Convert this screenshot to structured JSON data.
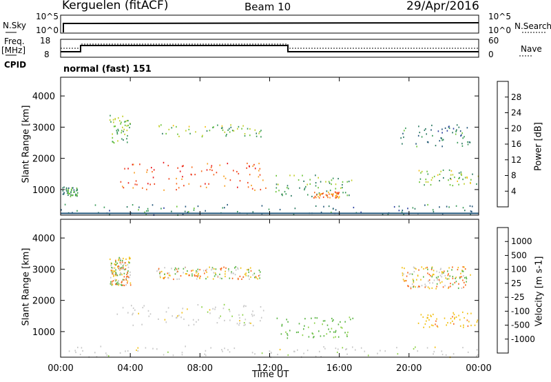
{
  "header": {
    "station": "Kerguelen (fitACF)",
    "beam": "Beam 10",
    "date": "29/Apr/2016"
  },
  "status_panels": {
    "nsky_label": "N.Sky",
    "nsky_ticks": [
      "10^5",
      "10^0"
    ],
    "nsearch_label": "N.Search",
    "nsearch_ticks": [
      "10^5",
      "10^0"
    ],
    "freq_label": "Freq.",
    "freq_unit": "[MHz]",
    "freq_ticks": [
      "18",
      "8"
    ],
    "nave_label": "Nave",
    "nave_ticks": [
      "60",
      "0"
    ],
    "cpid_label": "CPID",
    "cpid_value": "normal (fast) 151"
  },
  "axes": {
    "ylabel": "Slant Range [km]",
    "xlabel": "Time UT",
    "x_ticks": [
      "00:00",
      "04:00",
      "08:00",
      "12:00",
      "16:00",
      "20:00",
      "00:00"
    ],
    "y_ticks": [
      "1000",
      "2000",
      "3000",
      "4000"
    ]
  },
  "power_colorbar": {
    "label": "Power [dB]",
    "ticks": [
      "28",
      "24",
      "20",
      "16",
      "12",
      "8",
      "4"
    ],
    "colors": [
      "#e8171b",
      "#f0421c",
      "#f86d20",
      "#f7a024",
      "#f2c21a",
      "#c2cf2a",
      "#6cc43a",
      "#3a9a5a",
      "#2d7a63",
      "#23567b",
      "#2a3f9f",
      "#1a21c8"
    ]
  },
  "velocity_colorbar": {
    "label": "Velocity [m s-1]",
    "ticks": [
      "1000",
      "500",
      "100",
      "25",
      "-25",
      "-100",
      "-500",
      "-1000"
    ],
    "colors": [
      "#2a3fae",
      "#3562a6",
      "#3f8c68",
      "#5bb544",
      "#8fd34a",
      "#c8c8c8",
      "#c8c8c8",
      "#f2c21a",
      "#f7a024",
      "#f86d20",
      "#ee3b1c",
      "#e21a1a"
    ]
  },
  "chart_data": {
    "type": "heatmap",
    "title": "Kerguelen (fitACF)",
    "xlabel": "Time UT",
    "ylabel": "Slant Range [km]",
    "xlim": [
      0,
      24
    ],
    "ylim": [
      180,
      4600
    ],
    "frequency_MHz": [
      {
        "t": 0,
        "v": 9
      },
      {
        "t": 1,
        "v": 12.5
      },
      {
        "t": 13,
        "v": 9
      },
      {
        "t": 24,
        "v": 9
      }
    ],
    "nsky_level": "near 10^5 throughout",
    "power_regions": [
      {
        "t": [
          0.1,
          1.0
        ],
        "r": [
          800,
          1100
        ],
        "level": 10
      },
      {
        "t": [
          3.2,
          11.8
        ],
        "r": [
          1000,
          1900
        ],
        "level": 26
      },
      {
        "t": [
          2.8,
          4.0
        ],
        "r": [
          2500,
          3400
        ],
        "level": 14
      },
      {
        "t": [
          5.5,
          11.5
        ],
        "r": [
          2700,
          3100
        ],
        "level": 14
      },
      {
        "t": [
          12.3,
          16.8
        ],
        "r": [
          800,
          1500
        ],
        "level": 12
      },
      {
        "t": [
          14.5,
          16.0
        ],
        "r": [
          750,
          950
        ],
        "level": 24
      },
      {
        "t": [
          20.5,
          24.0
        ],
        "r": [
          1150,
          1650
        ],
        "level": 14
      },
      {
        "t": [
          19.5,
          23.5
        ],
        "r": [
          2400,
          3100
        ],
        "level": 8
      },
      {
        "t": [
          0.0,
          24.0
        ],
        "r": [
          200,
          550
        ],
        "level": 8
      }
    ],
    "velocity_regions": [
      {
        "t": [
          3.2,
          11.8
        ],
        "r": [
          1200,
          1900
        ],
        "level": 0
      },
      {
        "t": [
          12.3,
          16.8
        ],
        "r": [
          800,
          1500
        ],
        "level": 60
      },
      {
        "t": [
          20.5,
          24.0
        ],
        "r": [
          1150,
          1650
        ],
        "level": -80
      },
      {
        "t": [
          0.0,
          24.0
        ],
        "r": [
          200,
          550
        ],
        "level": 0
      }
    ]
  }
}
